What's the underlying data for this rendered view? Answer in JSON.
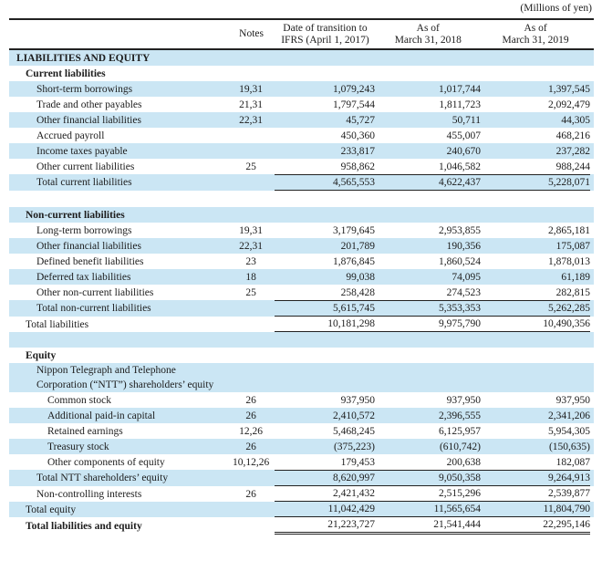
{
  "unit_note": "(Millions of yen)",
  "header": {
    "notes": "Notes",
    "col1_line1": "Date of transition to",
    "col1_line2": "IFRS (April 1, 2017)",
    "col2_line1": "As of",
    "col2_line2": "March 31, 2018",
    "col3_line1": "As of",
    "col3_line2": "March 31, 2019"
  },
  "colors": {
    "band_blue": "#cbe6f4",
    "rule_black": "#222222",
    "text": "#1c1c1c"
  },
  "table": {
    "rows": [
      {
        "label": "LIABILITIES AND EQUITY",
        "indent": 0,
        "bold": true,
        "bg": "blue",
        "notes": "",
        "v": [
          "",
          "",
          ""
        ],
        "rule": ""
      },
      {
        "label": "Current liabilities",
        "indent": 1,
        "bold": true,
        "bg": "white",
        "notes": "",
        "v": [
          "",
          "",
          ""
        ],
        "rule": ""
      },
      {
        "label": "Short-term borrowings",
        "indent": 2,
        "bold": false,
        "bg": "blue",
        "notes": "19,31",
        "v": [
          "1,079,243",
          "1,017,744",
          "1,397,545"
        ],
        "rule": ""
      },
      {
        "label": "Trade and other payables",
        "indent": 2,
        "bold": false,
        "bg": "white",
        "notes": "21,31",
        "v": [
          "1,797,544",
          "1,811,723",
          "2,092,479"
        ],
        "rule": ""
      },
      {
        "label": "Other financial liabilities",
        "indent": 2,
        "bold": false,
        "bg": "blue",
        "notes": "22,31",
        "v": [
          "45,727",
          "50,711",
          "44,305"
        ],
        "rule": ""
      },
      {
        "label": "Accrued payroll",
        "indent": 2,
        "bold": false,
        "bg": "white",
        "notes": "",
        "v": [
          "450,360",
          "455,007",
          "468,216"
        ],
        "rule": ""
      },
      {
        "label": "Income taxes payable",
        "indent": 2,
        "bold": false,
        "bg": "blue",
        "notes": "",
        "v": [
          "233,817",
          "240,670",
          "237,282"
        ],
        "rule": ""
      },
      {
        "label": "Other current liabilities",
        "indent": 2,
        "bold": false,
        "bg": "white",
        "notes": "25",
        "v": [
          "958,862",
          "1,046,582",
          "988,244"
        ],
        "rule": ""
      },
      {
        "label": "Total current liabilities",
        "indent": 2,
        "bold": false,
        "bg": "blue",
        "notes": "",
        "v": [
          "4,565,553",
          "4,622,437",
          "5,228,071"
        ],
        "rule": "topbottom"
      },
      {
        "spacer": true,
        "bg": "white",
        "h": 18
      },
      {
        "label": "Non-current liabilities",
        "indent": 1,
        "bold": true,
        "bg": "blue",
        "notes": "",
        "v": [
          "",
          "",
          ""
        ],
        "rule": ""
      },
      {
        "label": "Long-term borrowings",
        "indent": 2,
        "bold": false,
        "bg": "white",
        "notes": "19,31",
        "v": [
          "3,179,645",
          "2,953,855",
          "2,865,181"
        ],
        "rule": ""
      },
      {
        "label": "Other financial liabilities",
        "indent": 2,
        "bold": false,
        "bg": "blue",
        "notes": "22,31",
        "v": [
          "201,789",
          "190,356",
          "175,087"
        ],
        "rule": ""
      },
      {
        "label": "Defined benefit liabilities",
        "indent": 2,
        "bold": false,
        "bg": "white",
        "notes": "23",
        "v": [
          "1,876,845",
          "1,860,524",
          "1,878,013"
        ],
        "rule": ""
      },
      {
        "label": "Deferred tax liabilities",
        "indent": 2,
        "bold": false,
        "bg": "blue",
        "notes": "18",
        "v": [
          "99,038",
          "74,095",
          "61,189"
        ],
        "rule": ""
      },
      {
        "label": "Other non-current liabilities",
        "indent": 2,
        "bold": false,
        "bg": "white",
        "notes": "25",
        "v": [
          "258,428",
          "274,523",
          "282,815"
        ],
        "rule": ""
      },
      {
        "label": "Total non-current liabilities",
        "indent": 2,
        "bold": false,
        "bg": "blue",
        "notes": "",
        "v": [
          "5,615,745",
          "5,353,353",
          "5,262,285"
        ],
        "rule": "topbottom"
      },
      {
        "label": "Total liabilities",
        "indent": 1,
        "bold": false,
        "bg": "white",
        "notes": "",
        "v": [
          "10,181,298",
          "9,975,790",
          "10,490,356"
        ],
        "rule": "bottom"
      },
      {
        "spacer": true,
        "bg": "blue",
        "h": 17
      },
      {
        "label": "Equity",
        "indent": 1,
        "bold": true,
        "bg": "white",
        "notes": "",
        "v": [
          "",
          "",
          ""
        ],
        "rule": ""
      },
      {
        "label": "Nippon Telegraph and Telephone",
        "label2": "Corporation (“NTT”) shareholders’ equity",
        "indent": 2,
        "bold": false,
        "bg": "blue",
        "notes": "",
        "v": [
          "",
          "",
          ""
        ],
        "rule": ""
      },
      {
        "label": "Common stock",
        "indent": 3,
        "bold": false,
        "bg": "white",
        "notes": "26",
        "v": [
          "937,950",
          "937,950",
          "937,950"
        ],
        "rule": ""
      },
      {
        "label": "Additional paid-in capital",
        "indent": 3,
        "bold": false,
        "bg": "blue",
        "notes": "26",
        "v": [
          "2,410,572",
          "2,396,555",
          "2,341,206"
        ],
        "rule": ""
      },
      {
        "label": "Retained earnings",
        "indent": 3,
        "bold": false,
        "bg": "white",
        "notes": "12,26",
        "v": [
          "5,468,245",
          "6,125,957",
          "5,954,305"
        ],
        "rule": ""
      },
      {
        "label": "Treasury stock",
        "indent": 3,
        "bold": false,
        "bg": "blue",
        "notes": "26",
        "v": [
          "(375,223)",
          "(610,742)",
          "(150,635)"
        ],
        "rule": ""
      },
      {
        "label": "Other components of equity",
        "indent": 3,
        "bold": false,
        "bg": "white",
        "notes": "10,12,26",
        "v": [
          "179,453",
          "200,638",
          "182,087"
        ],
        "rule": ""
      },
      {
        "label": "Total NTT shareholders’ equity",
        "indent": 2,
        "bold": false,
        "bg": "blue",
        "notes": "",
        "v": [
          "8,620,997",
          "9,050,358",
          "9,264,913"
        ],
        "rule": "topbottom"
      },
      {
        "label": "Non-controlling interests",
        "indent": 2,
        "bold": false,
        "bg": "white",
        "notes": "26",
        "v": [
          "2,421,432",
          "2,515,296",
          "2,539,877"
        ],
        "rule": "bottom"
      },
      {
        "label": "Total equity",
        "indent": 1,
        "bold": false,
        "bg": "blue",
        "notes": "",
        "v": [
          "11,042,429",
          "11,565,654",
          "11,804,790"
        ],
        "rule": "bottom"
      },
      {
        "label": "Total liabilities and equity",
        "indent": 1,
        "bold": true,
        "bg": "white",
        "notes": "",
        "v": [
          "21,223,727",
          "21,541,444",
          "22,295,146"
        ],
        "rule": "double"
      }
    ]
  }
}
